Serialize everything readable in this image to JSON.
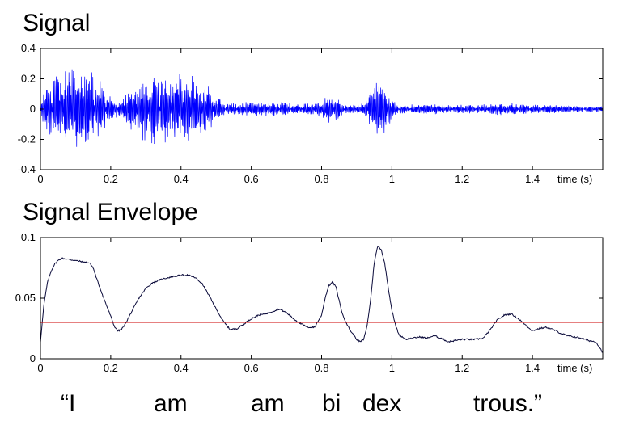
{
  "chart_data": [
    {
      "type": "line",
      "title": "Signal",
      "xlabel": "time (s)",
      "ylabel": "",
      "xlim": [
        0,
        1.6
      ],
      "ylim": [
        -0.4,
        0.4
      ],
      "xticks": [
        "0",
        "0.2",
        "0.4",
        "0.6",
        "0.8",
        "1",
        "1.2",
        "1.4"
      ],
      "yticks": [
        "0.4",
        "0.2",
        "0",
        "-0.2",
        "-0.4"
      ],
      "grid": false,
      "line_color": "#0000ff",
      "series": [
        {
          "amplitude_envelope": {
            "x": [
              0.0,
              0.01,
              0.03,
              0.05,
              0.08,
              0.1,
              0.13,
              0.16,
              0.19,
              0.21,
              0.23,
              0.26,
              0.3,
              0.34,
              0.38,
              0.42,
              0.45,
              0.48,
              0.51,
              0.53,
              0.56,
              0.6,
              0.64,
              0.68,
              0.72,
              0.76,
              0.78,
              0.8,
              0.82,
              0.84,
              0.86,
              0.89,
              0.92,
              0.94,
              0.96,
              0.98,
              1.0,
              1.02,
              1.05,
              1.1,
              1.15,
              1.2,
              1.25,
              1.3,
              1.35,
              1.4,
              1.45,
              1.5,
              1.55,
              1.6
            ],
            "y": [
              0.02,
              0.12,
              0.2,
              0.26,
              0.29,
              0.3,
              0.28,
              0.22,
              0.14,
              0.06,
              0.05,
              0.16,
              0.22,
              0.24,
              0.25,
              0.24,
              0.2,
              0.15,
              0.07,
              0.04,
              0.04,
              0.05,
              0.05,
              0.05,
              0.04,
              0.04,
              0.05,
              0.07,
              0.1,
              0.09,
              0.04,
              0.03,
              0.04,
              0.14,
              0.25,
              0.18,
              0.07,
              0.03,
              0.03,
              0.04,
              0.03,
              0.03,
              0.03,
              0.04,
              0.04,
              0.03,
              0.03,
              0.03,
              0.02,
              0.02
            ]
          }
        }
      ]
    },
    {
      "type": "line",
      "title": "Signal Envelope",
      "xlabel": "time (s)",
      "ylabel": "",
      "xlim": [
        0,
        1.6
      ],
      "ylim": [
        0,
        0.1
      ],
      "xticks": [
        "0",
        "0.2",
        "0.4",
        "0.6",
        "0.8",
        "1",
        "1.2",
        "1.4"
      ],
      "yticks": [
        "0.1",
        "0.05",
        "0"
      ],
      "grid": false,
      "series": [
        {
          "color": "#0a0a3a",
          "x": [
            0.0,
            0.01,
            0.02,
            0.03,
            0.04,
            0.05,
            0.06,
            0.08,
            0.1,
            0.12,
            0.14,
            0.15,
            0.16,
            0.18,
            0.2,
            0.21,
            0.22,
            0.23,
            0.24,
            0.26,
            0.28,
            0.3,
            0.32,
            0.35,
            0.38,
            0.4,
            0.42,
            0.44,
            0.46,
            0.48,
            0.5,
            0.52,
            0.54,
            0.56,
            0.58,
            0.6,
            0.62,
            0.64,
            0.66,
            0.68,
            0.7,
            0.72,
            0.74,
            0.76,
            0.78,
            0.8,
            0.81,
            0.82,
            0.83,
            0.84,
            0.85,
            0.86,
            0.88,
            0.9,
            0.91,
            0.92,
            0.93,
            0.94,
            0.95,
            0.96,
            0.97,
            0.98,
            0.99,
            1.0,
            1.01,
            1.02,
            1.04,
            1.06,
            1.08,
            1.1,
            1.12,
            1.14,
            1.16,
            1.18,
            1.2,
            1.22,
            1.24,
            1.26,
            1.28,
            1.3,
            1.32,
            1.34,
            1.36,
            1.38,
            1.4,
            1.42,
            1.44,
            1.46,
            1.48,
            1.5,
            1.52,
            1.54,
            1.56,
            1.58,
            1.59,
            1.6
          ],
          "y": [
            0.014,
            0.045,
            0.063,
            0.072,
            0.078,
            0.081,
            0.083,
            0.082,
            0.081,
            0.08,
            0.079,
            0.075,
            0.066,
            0.05,
            0.035,
            0.027,
            0.023,
            0.024,
            0.028,
            0.039,
            0.05,
            0.058,
            0.063,
            0.066,
            0.068,
            0.069,
            0.069,
            0.067,
            0.062,
            0.052,
            0.041,
            0.031,
            0.024,
            0.025,
            0.029,
            0.033,
            0.036,
            0.037,
            0.039,
            0.041,
            0.038,
            0.033,
            0.029,
            0.026,
            0.026,
            0.036,
            0.05,
            0.06,
            0.063,
            0.06,
            0.048,
            0.036,
            0.024,
            0.016,
            0.014,
            0.016,
            0.028,
            0.05,
            0.08,
            0.093,
            0.09,
            0.078,
            0.058,
            0.04,
            0.028,
            0.02,
            0.016,
            0.017,
            0.018,
            0.017,
            0.019,
            0.017,
            0.014,
            0.015,
            0.016,
            0.016,
            0.016,
            0.017,
            0.024,
            0.032,
            0.036,
            0.037,
            0.033,
            0.028,
            0.023,
            0.025,
            0.026,
            0.024,
            0.021,
            0.019,
            0.018,
            0.017,
            0.015,
            0.014,
            0.01,
            0.005
          ]
        },
        {
          "color": "#cc0000",
          "x": [
            0.0,
            1.6
          ],
          "y": [
            0.03,
            0.03
          ]
        }
      ]
    }
  ],
  "caption_words": [
    "“I",
    "am",
    "am",
    "bi",
    "dex",
    "trous.”"
  ]
}
